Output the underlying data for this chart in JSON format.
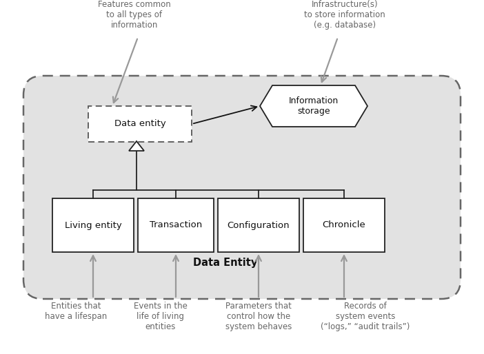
{
  "bg_color": "#ffffff",
  "cloud_color": "#e2e2e2",
  "cloud_edge_color": "#666666",
  "box_color": "#ffffff",
  "box_edge_color": "#222222",
  "dashed_box_color": "#ffffff",
  "dashed_box_edge_color": "#555555",
  "hex_color": "#ffffff",
  "hex_edge_color": "#222222",
  "arrow_color": "#999999",
  "inner_arrow_color": "#111111",
  "label_color": "#666666",
  "title_color": "#111111",
  "bottom_boxes": [
    "Living entity",
    "Transaction",
    "Configuration",
    "Chronicle"
  ],
  "bottom_labels": [
    "Entities that\nhave a lifespan",
    "Events in the\nlife of living\nentities",
    "Parameters that\ncontrol how the\nsystem behaves",
    "Records of\nsystem events\n(“logs,” “audit trails”)"
  ],
  "top_left_label": "Features common\nto all types of\ninformation",
  "top_right_label": "Infrastructure(s)\nto store information\n(e.g. database)",
  "data_entity_label": "Data entity",
  "info_storage_label": "Information\nstorage",
  "main_title": "Data Entity",
  "font_size_boxes": 9.5,
  "font_size_labels": 8.5,
  "font_size_title": 10.5
}
